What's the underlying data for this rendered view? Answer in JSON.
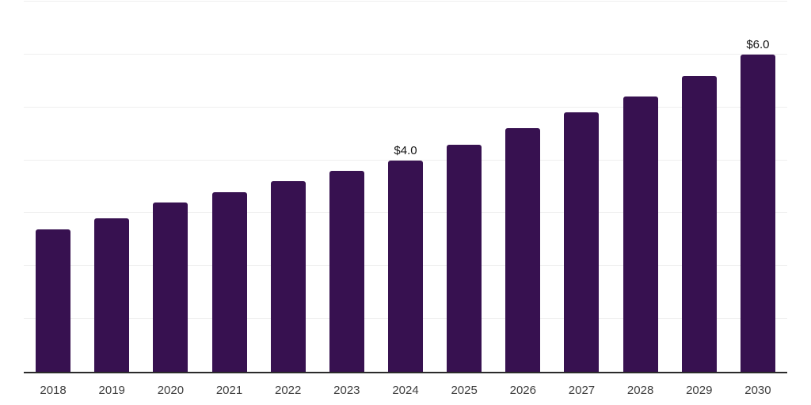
{
  "chart_data": {
    "type": "bar",
    "title": "",
    "xlabel": "",
    "ylabel": "",
    "categories": [
      "2018",
      "2019",
      "2020",
      "2021",
      "2022",
      "2023",
      "2024",
      "2025",
      "2026",
      "2027",
      "2028",
      "2029",
      "2030"
    ],
    "values": [
      2.7,
      2.9,
      3.2,
      3.4,
      3.6,
      3.8,
      4.0,
      4.3,
      4.6,
      4.9,
      5.2,
      5.6,
      6.0
    ],
    "point_labels": [
      "",
      "",
      "",
      "",
      "",
      "",
      "$4.0",
      "",
      "",
      "",
      "",
      "",
      "$6.0"
    ],
    "ylim": [
      0,
      7
    ],
    "gridline_step": 1,
    "grid": true,
    "legend": "none",
    "y_axis_tick_labels_visible": false,
    "colors": {
      "bar": "#371150",
      "gridline": "#efefef",
      "axis_line": "#2b2b2b",
      "tick_label": "#3d3d3d",
      "value_label": "#141414",
      "background": "#ffffff"
    }
  }
}
